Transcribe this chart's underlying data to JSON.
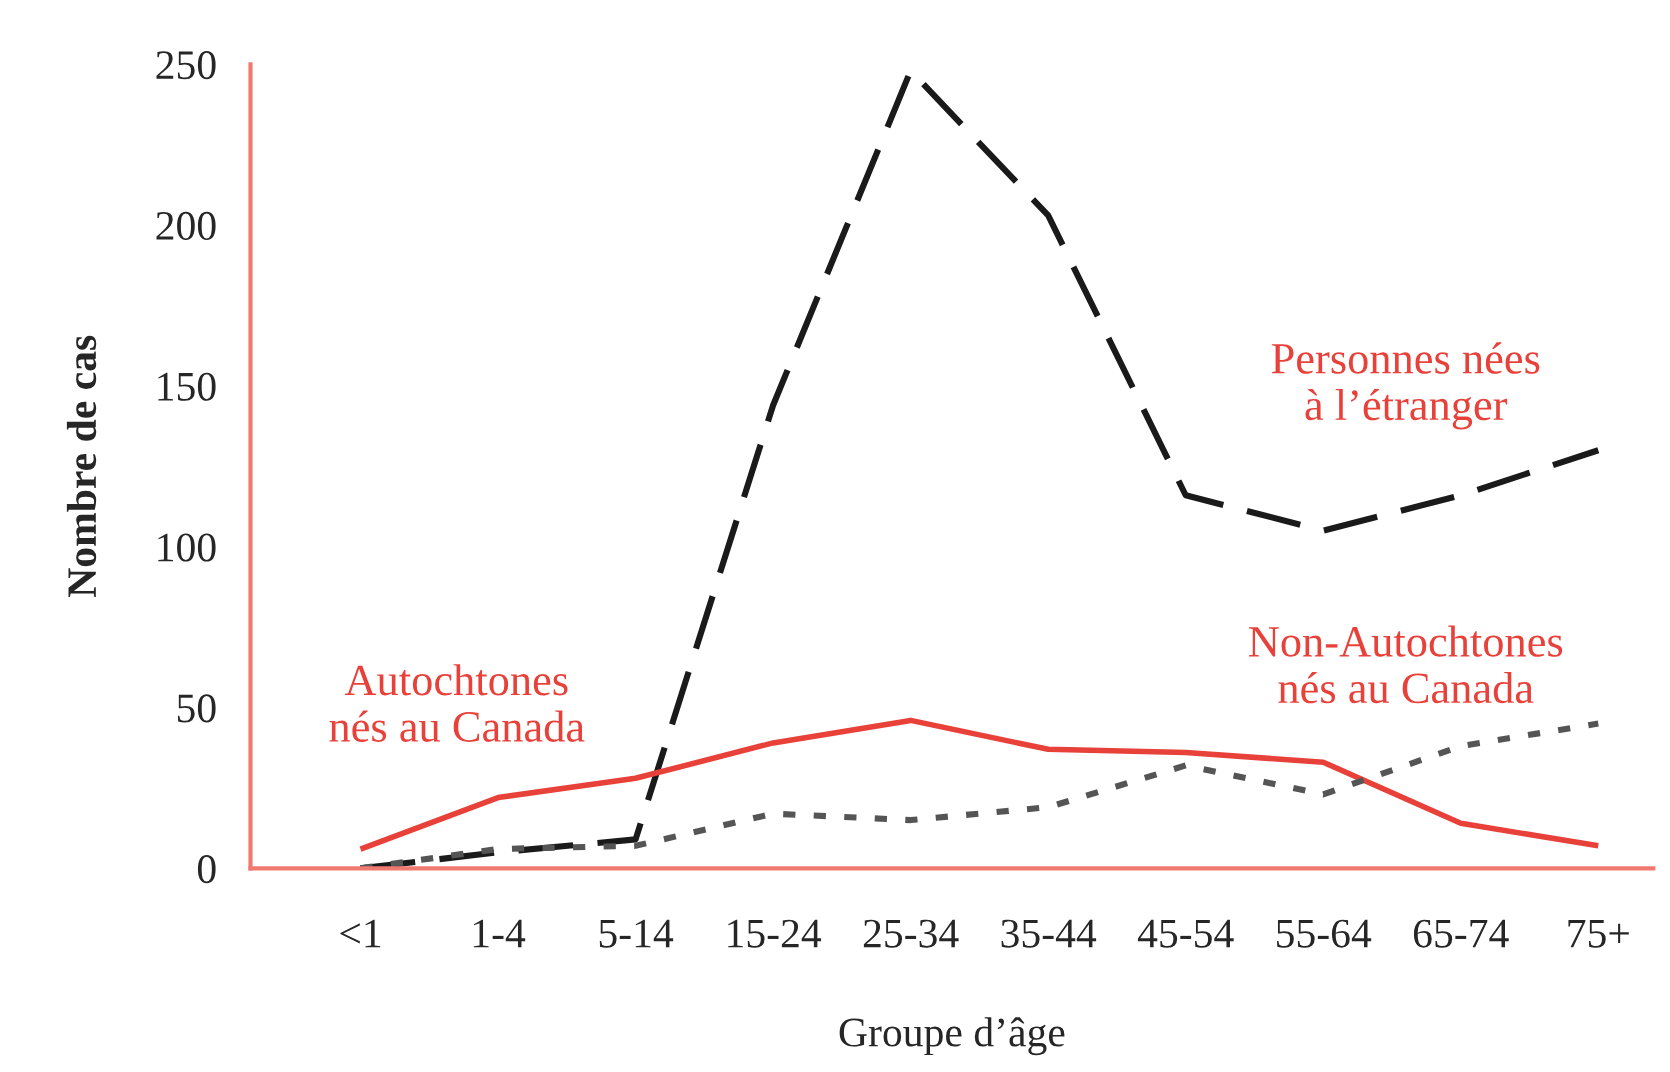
{
  "chart_data": {
    "type": "line",
    "xlabel": "Groupe d’âge",
    "ylabel": "Nombre de cas",
    "categories": [
      "<1",
      "1-4",
      "5-14",
      "15-24",
      "25-34",
      "35-44",
      "45-54",
      "55-64",
      "65-74",
      "75+"
    ],
    "ylim": [
      0,
      250
    ],
    "yticks": [
      0,
      50,
      100,
      150,
      200,
      250
    ],
    "grid": false,
    "legend": false,
    "marker": "none",
    "series": [
      {
        "name": "Personnes nées\nà l’étranger",
        "color": "#1a1a1a",
        "line_style": "dashed",
        "values": [
          0,
          5,
          9,
          144,
          248,
          203,
          116,
          105,
          116,
          130
        ]
      },
      {
        "name": "Autochtones\nnés au Canada",
        "color": "#e8413a",
        "line_style": "solid",
        "values": [
          6,
          22,
          28,
          39,
          46,
          37,
          36,
          33,
          14,
          7
        ]
      },
      {
        "name": "Non-Autochtones\nnés au Canada",
        "color": "#555555",
        "line_style": "dotted",
        "values": [
          0,
          6,
          7,
          17,
          15,
          19,
          32,
          23,
          38,
          45
        ]
      }
    ]
  }
}
